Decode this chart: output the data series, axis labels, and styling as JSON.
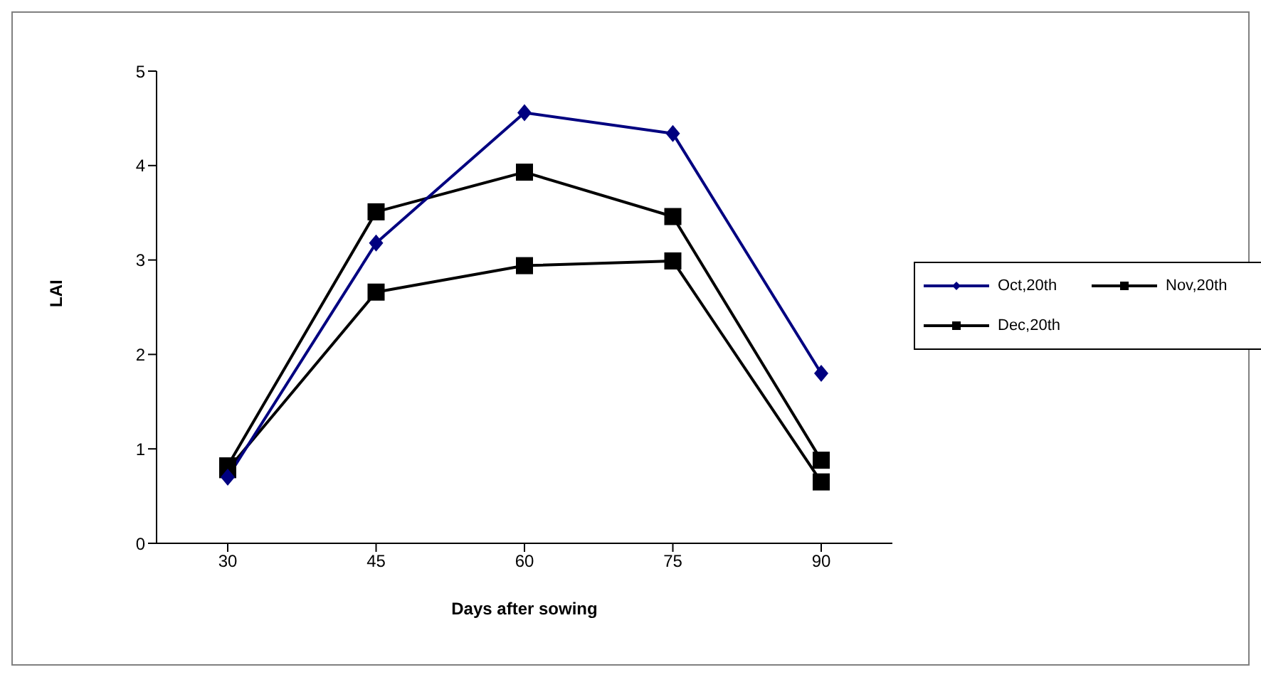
{
  "chart_data": {
    "type": "line",
    "xlabel": "Days after sowing",
    "ylabel": "LAI",
    "categories": [
      "30",
      "45",
      "60",
      "75",
      "90"
    ],
    "series": [
      {
        "name": "Oct,20th",
        "color": "#000080",
        "marker": "diamond",
        "values": [
          0.7,
          3.18,
          4.56,
          4.34,
          1.8
        ]
      },
      {
        "name": "Nov,20th",
        "color": "#000000",
        "marker": "square",
        "values": [
          0.82,
          3.51,
          3.93,
          3.46,
          0.88
        ]
      },
      {
        "name": "Dec,20th",
        "color": "#000000",
        "marker": "square",
        "values": [
          0.78,
          2.66,
          2.94,
          2.99,
          0.65
        ]
      }
    ],
    "ylim": [
      0,
      5
    ],
    "yticks": [
      0,
      1,
      2,
      3,
      4,
      5
    ],
    "grid": false,
    "legend": "right",
    "line_style": "solid"
  }
}
